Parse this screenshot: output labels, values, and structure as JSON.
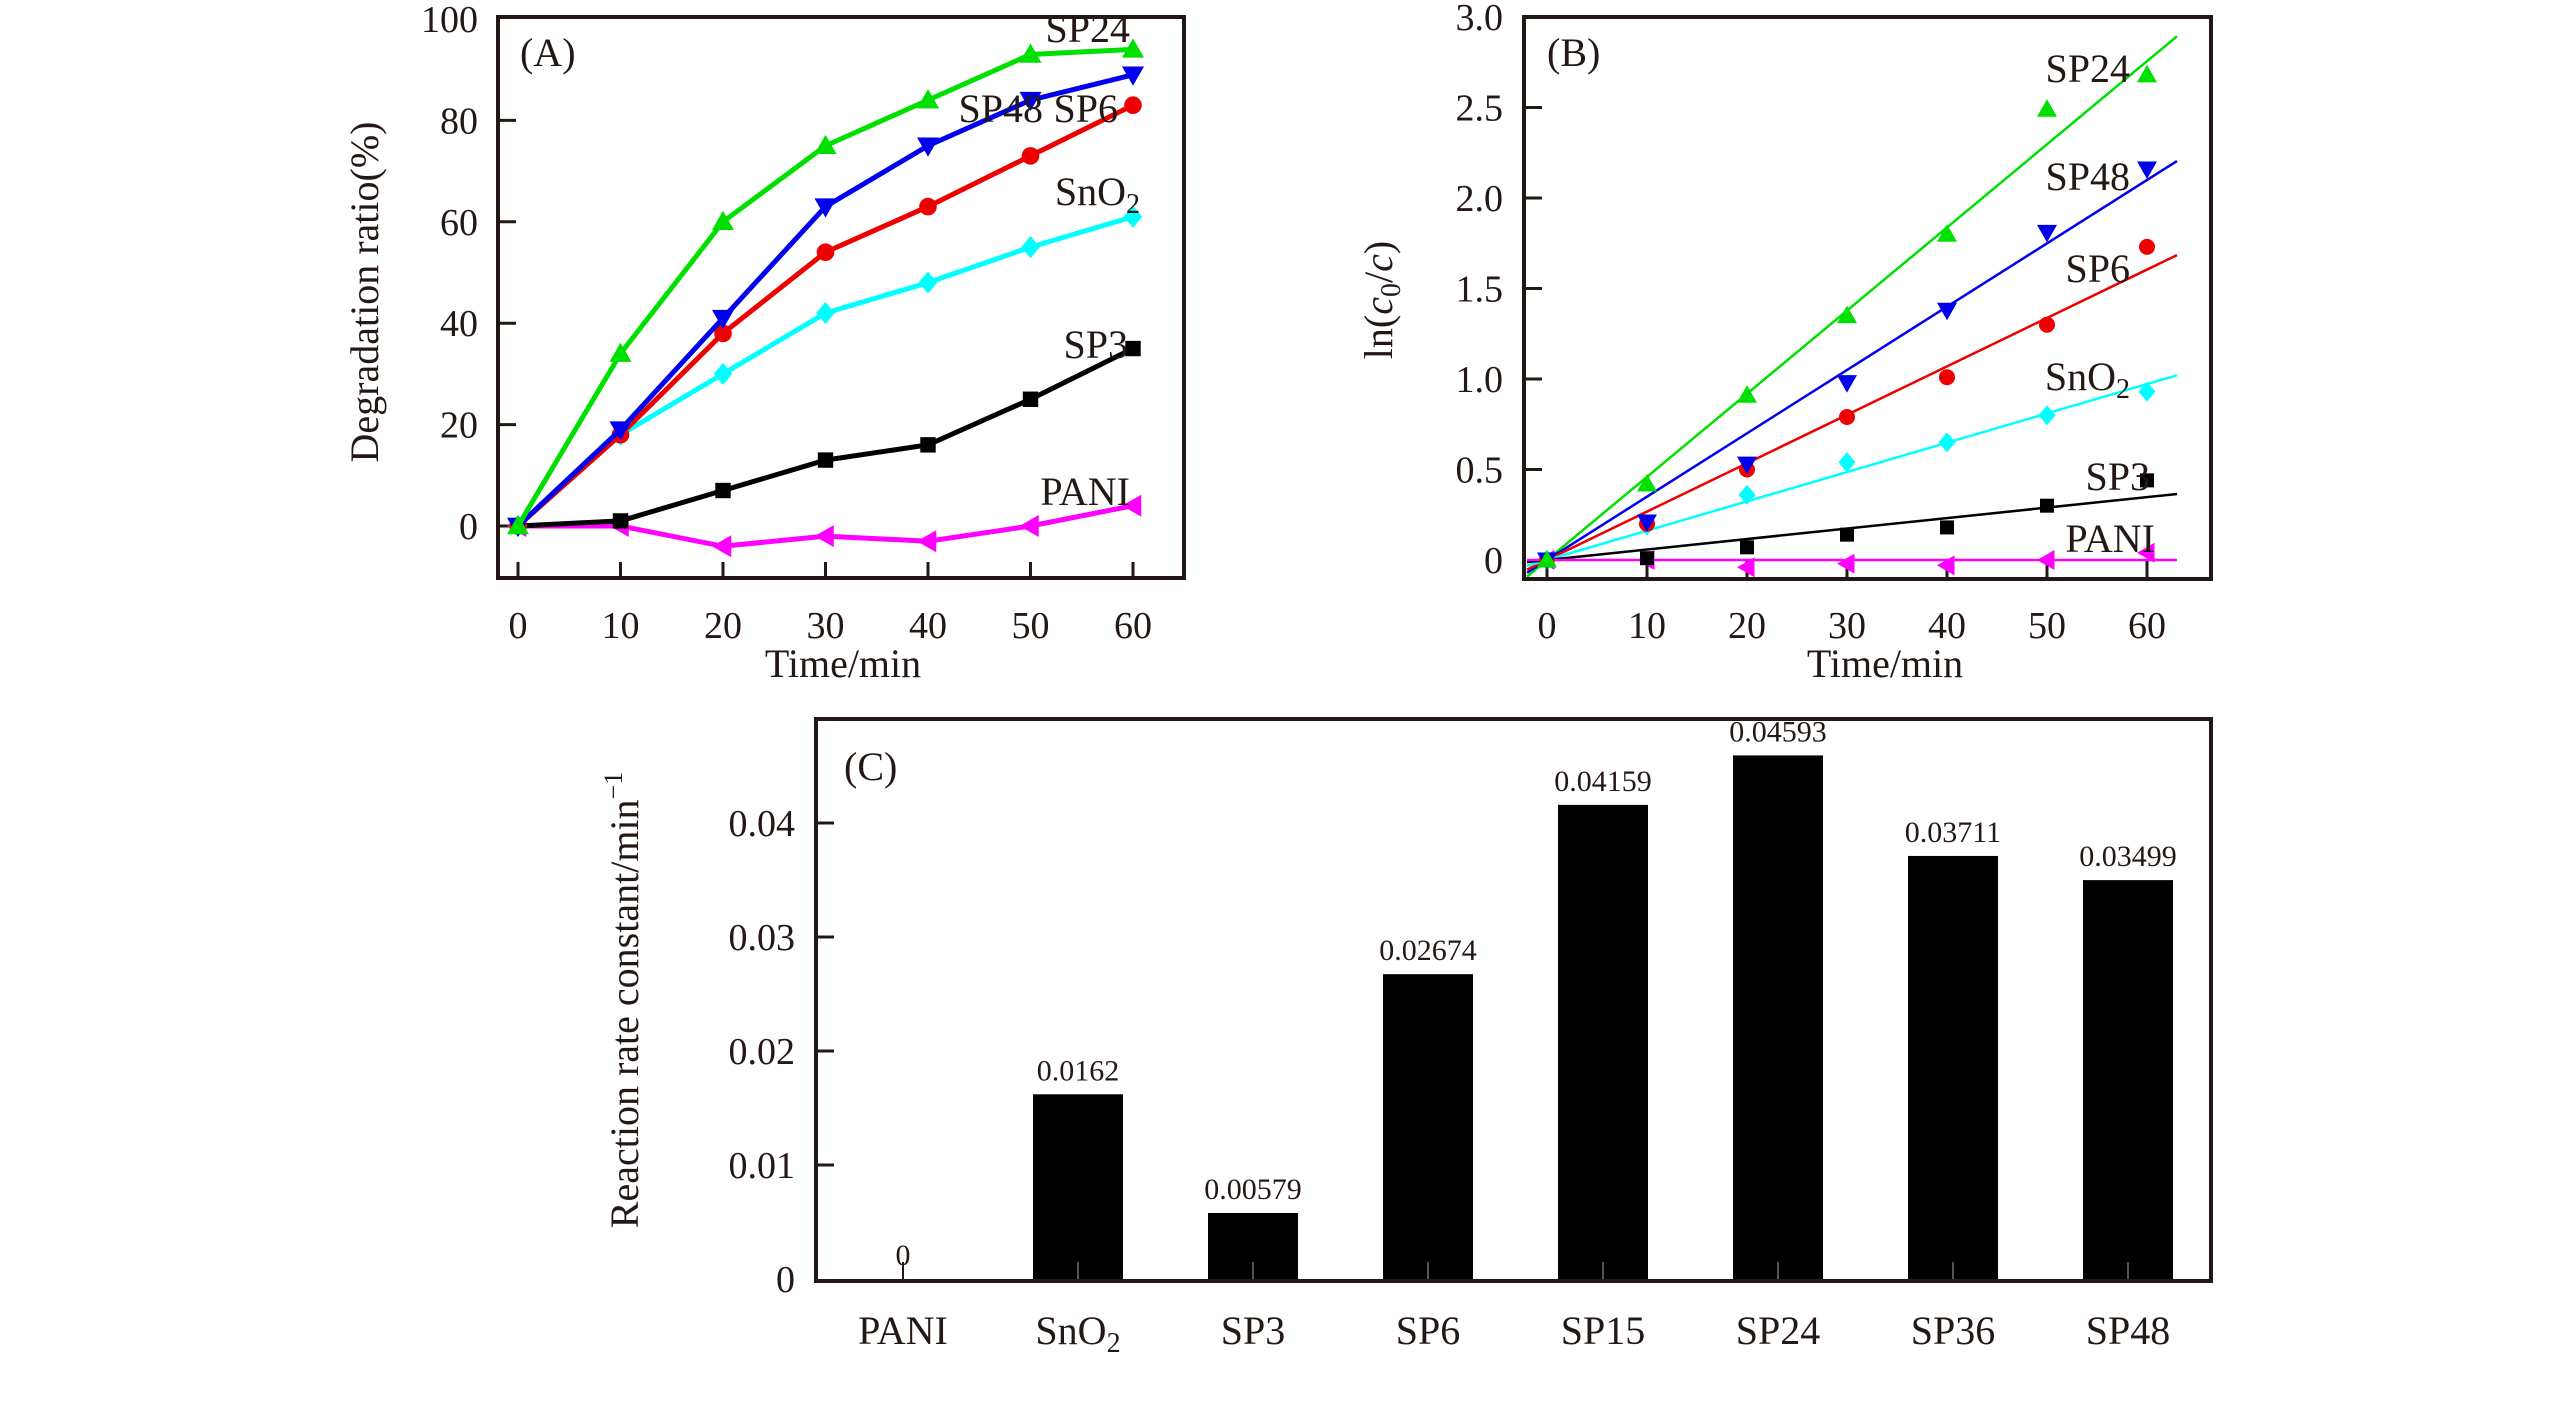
{
  "chart_data": [
    {
      "panel": "(A)",
      "type": "line",
      "xlabel": "Time/min",
      "ylabel": "Degradation ratio(%)",
      "xlim": [
        -2.5,
        63
      ],
      "ylim": [
        -10,
        100
      ],
      "xticks": [
        0,
        10,
        20,
        30,
        40,
        50,
        60
      ],
      "yticks": [
        0,
        20,
        40,
        60,
        80,
        100
      ],
      "grid": false,
      "x": [
        0,
        10,
        20,
        30,
        40,
        50,
        60
      ],
      "series": [
        {
          "name": "SP24",
          "label": "SP24",
          "color": "#00e000",
          "marker": "triangle-up",
          "values": [
            0,
            34,
            60,
            75,
            84,
            93,
            94
          ]
        },
        {
          "name": "SP48",
          "label": "SP48",
          "color": "#0000ee",
          "marker": "triangle-down",
          "values": [
            0,
            19,
            41,
            63,
            75,
            84,
            89
          ]
        },
        {
          "name": "SP6",
          "label": "SP6",
          "color": "#ee0000",
          "marker": "circle",
          "values": [
            0,
            18,
            38,
            54,
            63,
            73,
            83
          ]
        },
        {
          "name": "SnO2",
          "label": "SnO",
          "label_sub": "2",
          "color": "#00ffff",
          "marker": "diamond",
          "values": [
            0,
            18,
            30,
            42,
            48,
            55,
            61
          ]
        },
        {
          "name": "SP3",
          "label": "SP3",
          "color": "#000000",
          "marker": "square",
          "values": [
            0,
            1,
            7,
            13,
            16,
            25,
            35
          ]
        },
        {
          "name": "PANI",
          "label": "PANI",
          "color": "#ff00ff",
          "marker": "triangle-left",
          "values": [
            0,
            0,
            -4,
            -2,
            -3,
            0,
            4
          ]
        }
      ]
    },
    {
      "panel": "(B)",
      "type": "scatter",
      "xlabel": "Time/min",
      "ylabel_prefix": "ln(",
      "ylabel_italic": "c",
      "ylabel_sub": "0",
      "ylabel_mid": "/",
      "ylabel_italic2": "c",
      "ylabel_suffix": ")",
      "xlim": [
        -2.3,
        66.5
      ],
      "ylim": [
        -0.11,
        3.0
      ],
      "xticks": [
        0,
        10,
        20,
        30,
        40,
        50,
        60
      ],
      "yticks": [
        0,
        0.5,
        1.0,
        1.5,
        2.0,
        2.5,
        3.0
      ],
      "ytick_labels": [
        "0",
        "0.5",
        "1.0",
        "1.5",
        "2.0",
        "2.5",
        "3.0"
      ],
      "grid": false,
      "x": [
        0,
        10,
        20,
        30,
        40,
        50,
        60
      ],
      "fit": "linear through origin, x from -2 to 63",
      "series": [
        {
          "name": "SP24",
          "label": "SP24",
          "color": "#00e000",
          "marker": "triangle-up",
          "slope": 0.04593,
          "values": [
            0,
            0.42,
            0.91,
            1.35,
            1.8,
            2.49,
            2.68
          ]
        },
        {
          "name": "SP48",
          "label": "SP48",
          "color": "#0000ee",
          "marker": "triangle-down",
          "slope": 0.03499,
          "values": [
            0,
            0.21,
            0.53,
            0.98,
            1.38,
            1.81,
            2.16
          ]
        },
        {
          "name": "SP6",
          "label": "SP6",
          "color": "#ee0000",
          "marker": "circle",
          "slope": 0.02674,
          "values": [
            0,
            0.2,
            0.5,
            0.79,
            1.01,
            1.3,
            1.73
          ]
        },
        {
          "name": "SnO2",
          "label": "SnO",
          "label_sub": "2",
          "color": "#00ffff",
          "marker": "diamond",
          "slope": 0.0162,
          "values": [
            0,
            0.19,
            0.36,
            0.54,
            0.65,
            0.8,
            0.93
          ]
        },
        {
          "name": "SP3",
          "label": "SP3",
          "color": "#000000",
          "marker": "square",
          "slope": 0.00579,
          "values": [
            0,
            0.01,
            0.07,
            0.14,
            0.18,
            0.3,
            0.44
          ]
        },
        {
          "name": "PANI",
          "label": "PANI",
          "color": "#ff00ff",
          "marker": "triangle-left",
          "slope": 0,
          "values": [
            0,
            0.0,
            -0.04,
            -0.02,
            -0.03,
            0.0,
            0.04
          ]
        }
      ]
    },
    {
      "panel": "(C)",
      "type": "bar",
      "ylabel": "Reaction rate constant/min",
      "ylabel_sup": "−1",
      "xlabel": "",
      "ylim": [
        0,
        0.048
      ],
      "yticks": [
        0,
        0.01,
        0.02,
        0.03,
        0.04
      ],
      "ytick_labels": [
        "0",
        "0.01",
        "0.02",
        "0.03",
        "0.04"
      ],
      "grid": false,
      "bar_color": "#000000",
      "categories": [
        "PANI",
        "SnO2",
        "SP3",
        "SP6",
        "SP15",
        "SP24",
        "SP36",
        "SP48"
      ],
      "category_labels": [
        {
          "main": "PANI"
        },
        {
          "main": "SnO",
          "sub": "2"
        },
        {
          "main": "SP3"
        },
        {
          "main": "SP6"
        },
        {
          "main": "SP15"
        },
        {
          "main": "SP24"
        },
        {
          "main": "SP36"
        },
        {
          "main": "SP48"
        }
      ],
      "values": [
        0,
        0.0162,
        0.00579,
        0.02674,
        0.04159,
        0.04593,
        0.03711,
        0.03499
      ],
      "value_labels": [
        "0",
        "0.0162",
        "0.00579",
        "0.02674",
        "0.04159",
        "0.04593",
        "0.03711",
        "0.03499"
      ]
    }
  ]
}
